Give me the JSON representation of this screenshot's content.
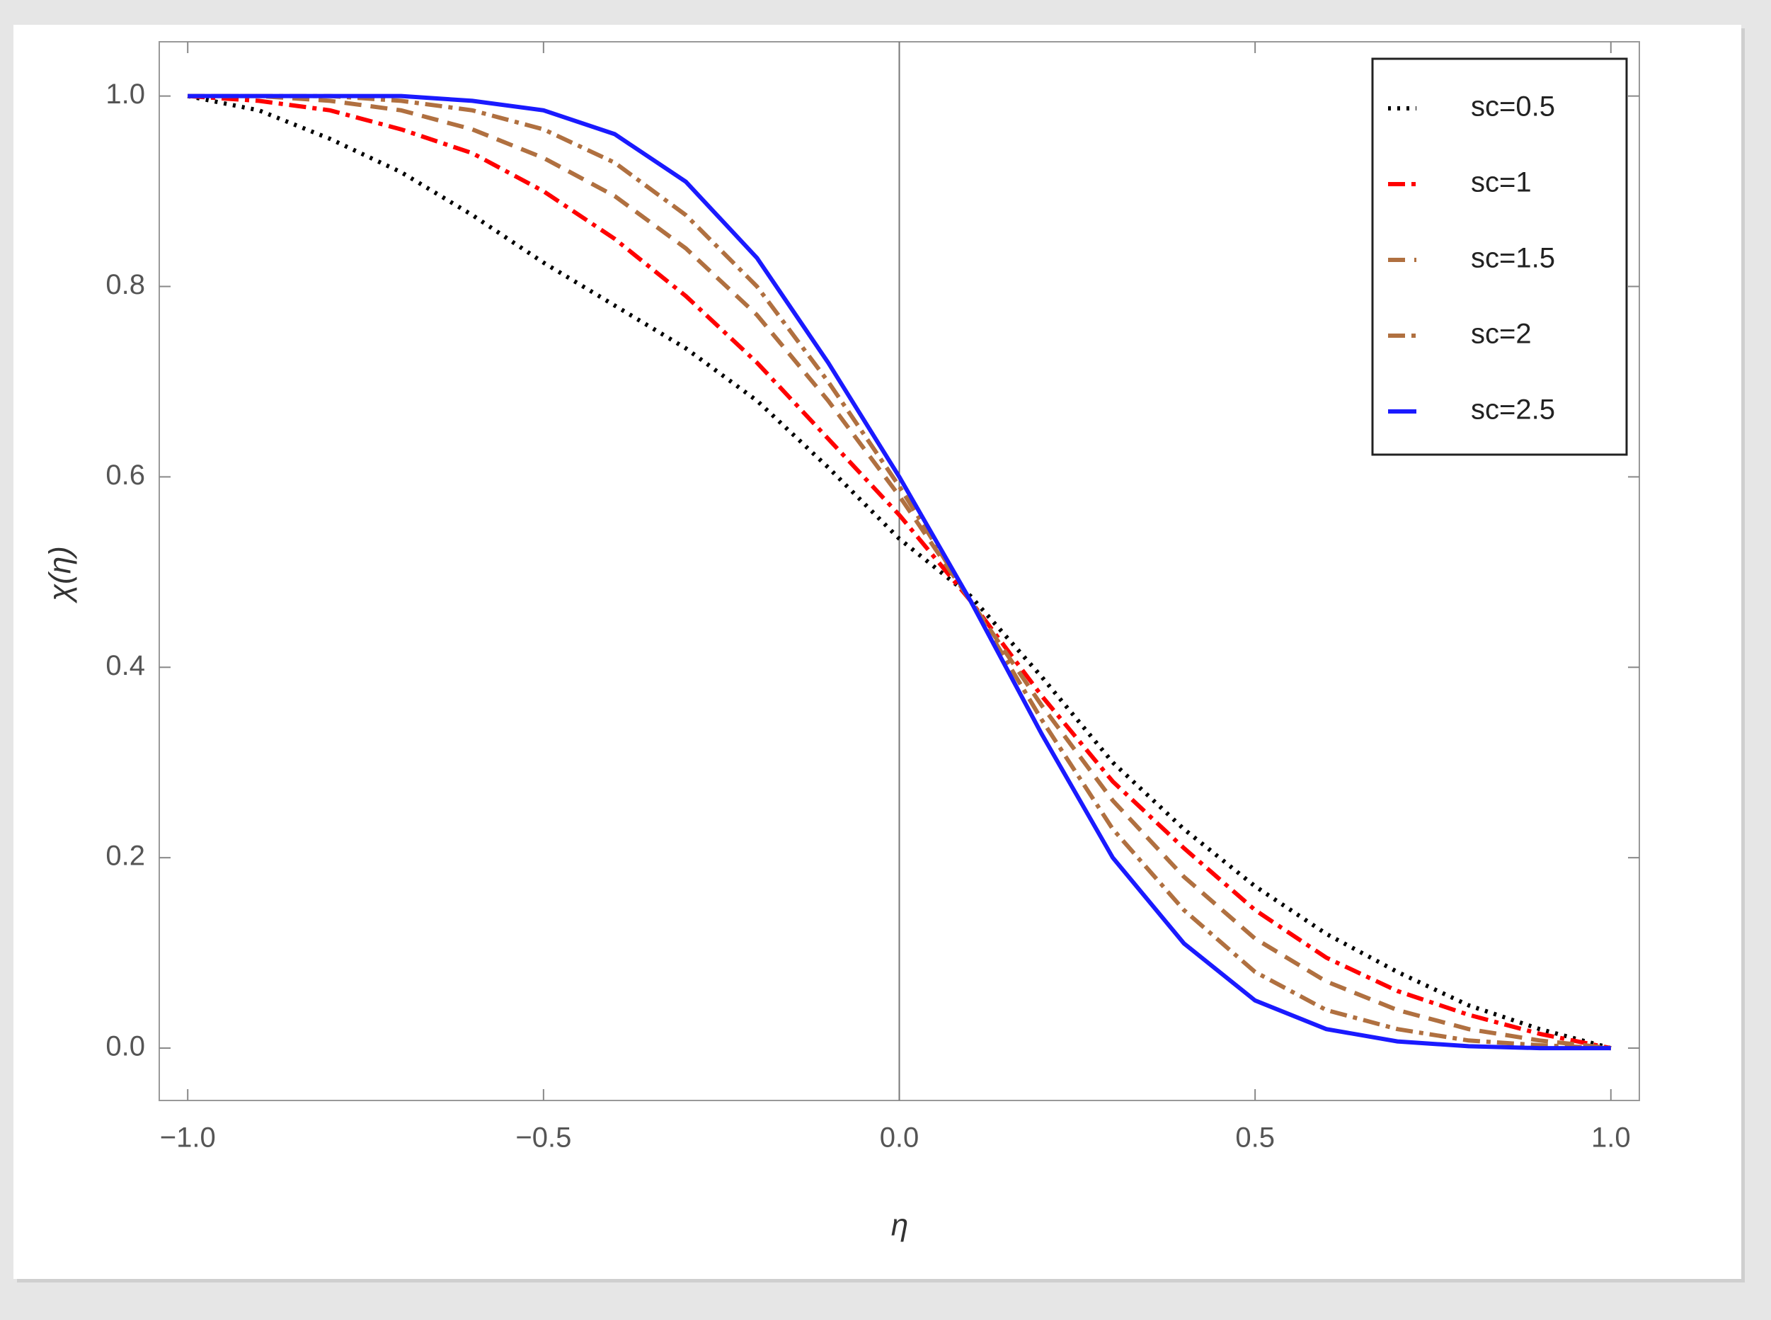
{
  "chart_data": {
    "type": "line",
    "x_label": "η",
    "y_label": "χ(η)",
    "x": [
      -1.0,
      -0.9,
      -0.8,
      -0.7,
      -0.6,
      -0.5,
      -0.4,
      -0.3,
      -0.2,
      -0.1,
      0.0,
      0.1,
      0.2,
      0.3,
      0.4,
      0.5,
      0.6,
      0.7,
      0.8,
      0.9,
      1.0
    ],
    "series": [
      {
        "name": "sc=0.5",
        "color": "#000000",
        "dash": "dotted",
        "values": [
          1.0,
          0.985,
          0.955,
          0.92,
          0.875,
          0.825,
          0.78,
          0.735,
          0.68,
          0.61,
          0.535,
          0.475,
          0.39,
          0.3,
          0.23,
          0.17,
          0.12,
          0.08,
          0.045,
          0.02,
          0.0
        ]
      },
      {
        "name": "sc=1",
        "color": "#ff0000",
        "dash": "dashdot",
        "values": [
          1.0,
          0.995,
          0.985,
          0.965,
          0.94,
          0.9,
          0.85,
          0.79,
          0.72,
          0.64,
          0.56,
          0.47,
          0.37,
          0.28,
          0.21,
          0.145,
          0.095,
          0.06,
          0.035,
          0.015,
          0.0
        ]
      },
      {
        "name": "sc=1.5",
        "color": "#b07040",
        "dash": "dashed",
        "values": [
          1.0,
          1.0,
          0.995,
          0.985,
          0.965,
          0.935,
          0.895,
          0.84,
          0.77,
          0.68,
          0.58,
          0.47,
          0.36,
          0.26,
          0.18,
          0.115,
          0.07,
          0.04,
          0.02,
          0.008,
          0.0
        ]
      },
      {
        "name": "sc=2",
        "color": "#b07040",
        "dash": "dashdot",
        "values": [
          1.0,
          1.0,
          1.0,
          0.995,
          0.985,
          0.965,
          0.93,
          0.875,
          0.8,
          0.7,
          0.59,
          0.47,
          0.345,
          0.23,
          0.145,
          0.08,
          0.04,
          0.02,
          0.008,
          0.003,
          0.0
        ]
      },
      {
        "name": "sc=2.5",
        "color": "#1a1aff",
        "dash": "solid",
        "values": [
          1.0,
          1.0,
          1.0,
          1.0,
          0.995,
          0.985,
          0.96,
          0.91,
          0.83,
          0.72,
          0.6,
          0.47,
          0.33,
          0.2,
          0.11,
          0.05,
          0.02,
          0.007,
          0.002,
          0.0,
          0.0
        ]
      }
    ],
    "xlim": [
      -1.04,
      1.04
    ],
    "ylim": [
      -0.055,
      1.057
    ],
    "xticks": [
      {
        "value": -1.0,
        "label": "−1.0"
      },
      {
        "value": -0.5,
        "label": "−0.5"
      },
      {
        "value": 0.0,
        "label": "0.0"
      },
      0.5,
      {
        "value": 1.0,
        "label": "1.0"
      }
    ],
    "yticks": [
      {
        "value": 0.0,
        "label": "0.0"
      },
      0.2,
      0.4,
      0.6,
      0.8,
      {
        "value": 1.0,
        "label": "1.0"
      }
    ],
    "legend_position": "upper right"
  }
}
